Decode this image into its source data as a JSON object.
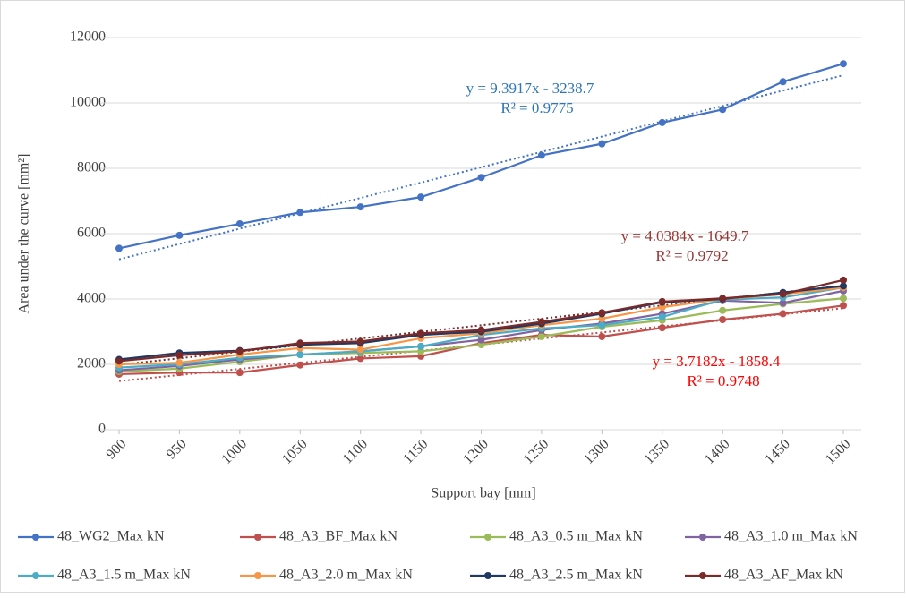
{
  "chart_data": {
    "type": "line",
    "x_label": "Support bay [mm]",
    "y_label": "Area under the curve [mm²]",
    "x": [
      900,
      950,
      1000,
      1050,
      1100,
      1150,
      1200,
      1250,
      1300,
      1350,
      1400,
      1450,
      1500
    ],
    "xlim": [
      900,
      1500
    ],
    "xticks": [
      900,
      950,
      1000,
      1050,
      1100,
      1150,
      1200,
      1250,
      1300,
      1350,
      1400,
      1450,
      1500
    ],
    "ylim": [
      0,
      12000
    ],
    "yticks": [
      0,
      2000,
      4000,
      6000,
      8000,
      10000,
      12000
    ],
    "grid": true,
    "legend": "bottom",
    "series": [
      {
        "name": "48_WG2_Max kN",
        "color": "#4472c4",
        "values": [
          5550,
          5950,
          6300,
          6650,
          6820,
          7120,
          7720,
          8400,
          8750,
          9400,
          9800,
          10650,
          11200
        ],
        "trendline": {
          "slope": 9.3917,
          "intercept": -3238.7,
          "equation": "y = 9.3917x - 3238.7",
          "r2": "R² = 0.9775",
          "r2_value": 0.9775,
          "color": "#2e75b6"
        }
      },
      {
        "name": "48_A3_BF_Max kN",
        "color": "#c0504d",
        "values": [
          1700,
          1750,
          1750,
          1980,
          2180,
          2250,
          2650,
          2900,
          2850,
          3120,
          3370,
          3550,
          3800
        ],
        "trendline": {
          "slope": 3.7182,
          "intercept": -1858.4,
          "equation": "y = 3.7182x - 1858.4",
          "r2": "R² = 0.9748",
          "r2_value": 0.9748,
          "color": "#ff0000"
        }
      },
      {
        "name": "48_A3_0.5 m_Max kN",
        "color": "#9bbb59",
        "values": [
          1780,
          1870,
          2080,
          2300,
          2350,
          2400,
          2600,
          2850,
          3150,
          3350,
          3650,
          3850,
          4020
        ]
      },
      {
        "name": "48_A3_1.0 m_Max kN",
        "color": "#8064a2",
        "values": [
          1820,
          1950,
          2150,
          2300,
          2400,
          2550,
          2750,
          3050,
          3250,
          3550,
          3950,
          3880,
          4250
        ]
      },
      {
        "name": "48_A3_1.5 m_Max kN",
        "color": "#4bacc6",
        "values": [
          1900,
          2000,
          2200,
          2300,
          2400,
          2550,
          2900,
          3100,
          3200,
          3450,
          3980,
          4050,
          4350
        ]
      },
      {
        "name": "48_A3_2.0 m_Max kN",
        "color": "#f79646",
        "values": [
          2000,
          2050,
          2300,
          2500,
          2450,
          2800,
          2950,
          3200,
          3400,
          3750,
          4000,
          4150,
          4350
        ]
      },
      {
        "name": "48_A3_2.5 m_Max kN",
        "color": "#1f3864",
        "values": [
          2150,
          2350,
          2420,
          2600,
          2650,
          2900,
          3000,
          3250,
          3550,
          3900,
          4000,
          4200,
          4400
        ]
      },
      {
        "name": "48_A3_AF_Max kN",
        "color": "#7b2a2a",
        "values": [
          2100,
          2280,
          2400,
          2650,
          2700,
          2950,
          3050,
          3300,
          3580,
          3920,
          4020,
          4150,
          4580
        ],
        "trendline": {
          "slope": 4.0384,
          "intercept": -1649.7,
          "equation": "y = 4.0384x - 1649.7",
          "r2": "R² = 0.9792",
          "r2_value": 0.9792,
          "color": "#953735"
        }
      }
    ]
  }
}
